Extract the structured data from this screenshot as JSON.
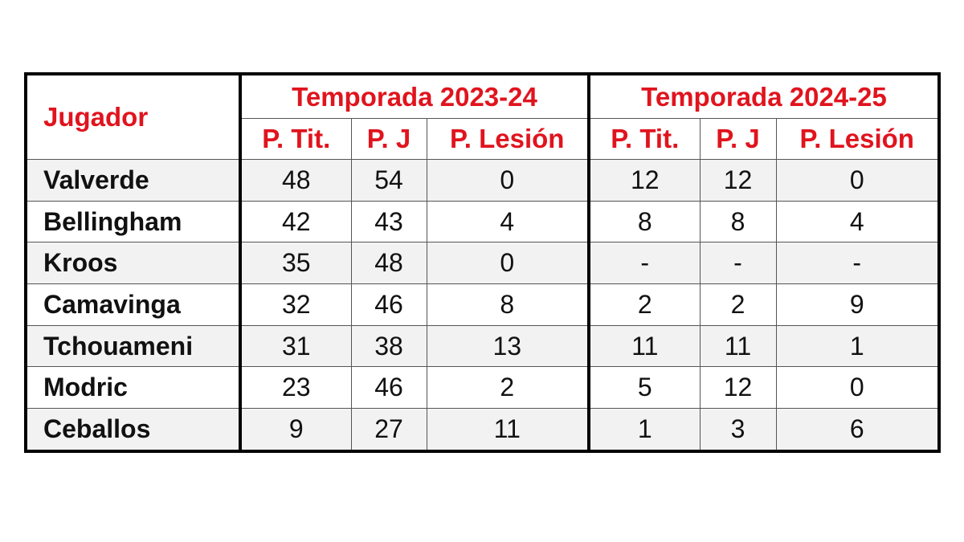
{
  "table": {
    "player_header": "Jugador",
    "seasons": [
      "Temporada 2023-24",
      "Temporada 2024-25"
    ],
    "subheaders": [
      "P. Tit.",
      "P. J",
      "P. Lesión",
      "P. Tit.",
      "P. J",
      "P. Lesión"
    ],
    "rows": [
      {
        "name": "Valverde",
        "values": [
          "48",
          "54",
          "0",
          "12",
          "12",
          "0"
        ]
      },
      {
        "name": "Bellingham",
        "values": [
          "42",
          "43",
          "4",
          "8",
          "8",
          "4"
        ]
      },
      {
        "name": "Kroos",
        "values": [
          "35",
          "48",
          "0",
          "-",
          "-",
          "-"
        ]
      },
      {
        "name": "Camavinga",
        "values": [
          "32",
          "46",
          "8",
          "2",
          "2",
          "9"
        ]
      },
      {
        "name": "Tchouameni",
        "values": [
          "31",
          "38",
          "13",
          "11",
          "11",
          "1"
        ]
      },
      {
        "name": "Modric",
        "values": [
          "23",
          "46",
          "2",
          "5",
          "12",
          "0"
        ]
      },
      {
        "name": "Ceballos",
        "values": [
          "9",
          "27",
          "11",
          "1",
          "3",
          "6"
        ]
      }
    ],
    "colors": {
      "header_text": "#e0141e",
      "shaded_row": "#f2f2f2"
    }
  }
}
